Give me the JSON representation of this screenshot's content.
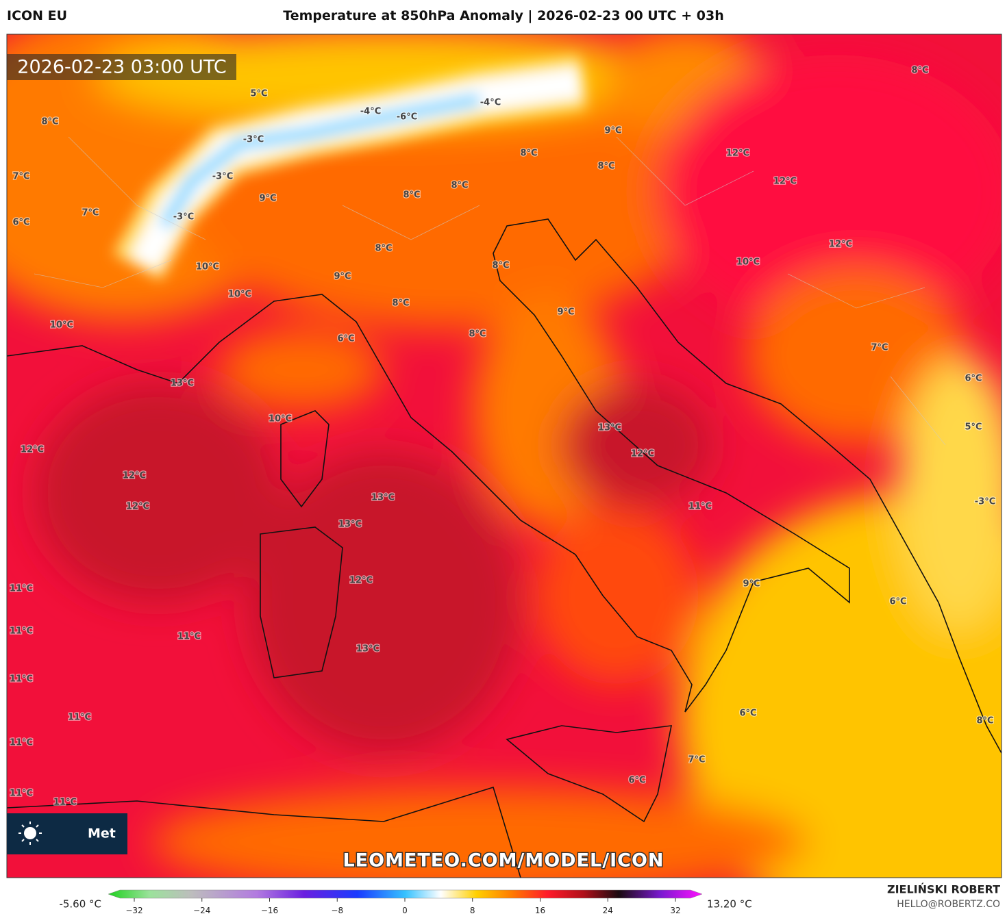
{
  "header": {
    "model": "ICON EU",
    "title": "Temperature at 850hPa Anomaly | 2026-02-23 00 UTC + 03h"
  },
  "map": {
    "timestamp": "2026-02-23 03:00 UTC",
    "labels": [
      "8°C",
      "5°C",
      "-4°C",
      "-6°C",
      "-4°C",
      "-3°C",
      "8°C",
      "9°C",
      "12°C",
      "8°C",
      "7°C",
      "-3°C",
      "8°C",
      "12°C",
      "8°C",
      "9°C",
      "8°C",
      "7°C",
      "6°C",
      "-3°C",
      "8°C",
      "12°C",
      "10°C",
      "8°C",
      "10°C",
      "9°C",
      "10°C",
      "8°C",
      "9°C",
      "10°C",
      "6°C",
      "8°C",
      "7°C",
      "13°C",
      "6°C",
      "10°C",
      "13°C",
      "5°C",
      "12°C",
      "12°C",
      "12°C",
      "13°C",
      "12°C",
      "11°C",
      "-3°C",
      "13°C",
      "12°C",
      "9°C",
      "11°C",
      "6°C",
      "11°C",
      "11°C",
      "13°C",
      "11°C",
      "11°C",
      "6°C",
      "8°C",
      "11°C",
      "7°C",
      "6°C",
      "11°C",
      "11°C"
    ],
    "logo": "Met",
    "watermark": "LEOMETEO.COM/MODEL/ICON"
  },
  "colorbar": {
    "min_label": "-5.60 °C",
    "max_label": "13.20 °C",
    "ticks": [
      "−32",
      "−24",
      "−16",
      "−8",
      "0",
      "8",
      "16",
      "24",
      "32"
    ]
  },
  "credits": {
    "name": "ZIELIŃSKI ROBERT",
    "email": "HELLO@ROBERTZ.CO"
  }
}
